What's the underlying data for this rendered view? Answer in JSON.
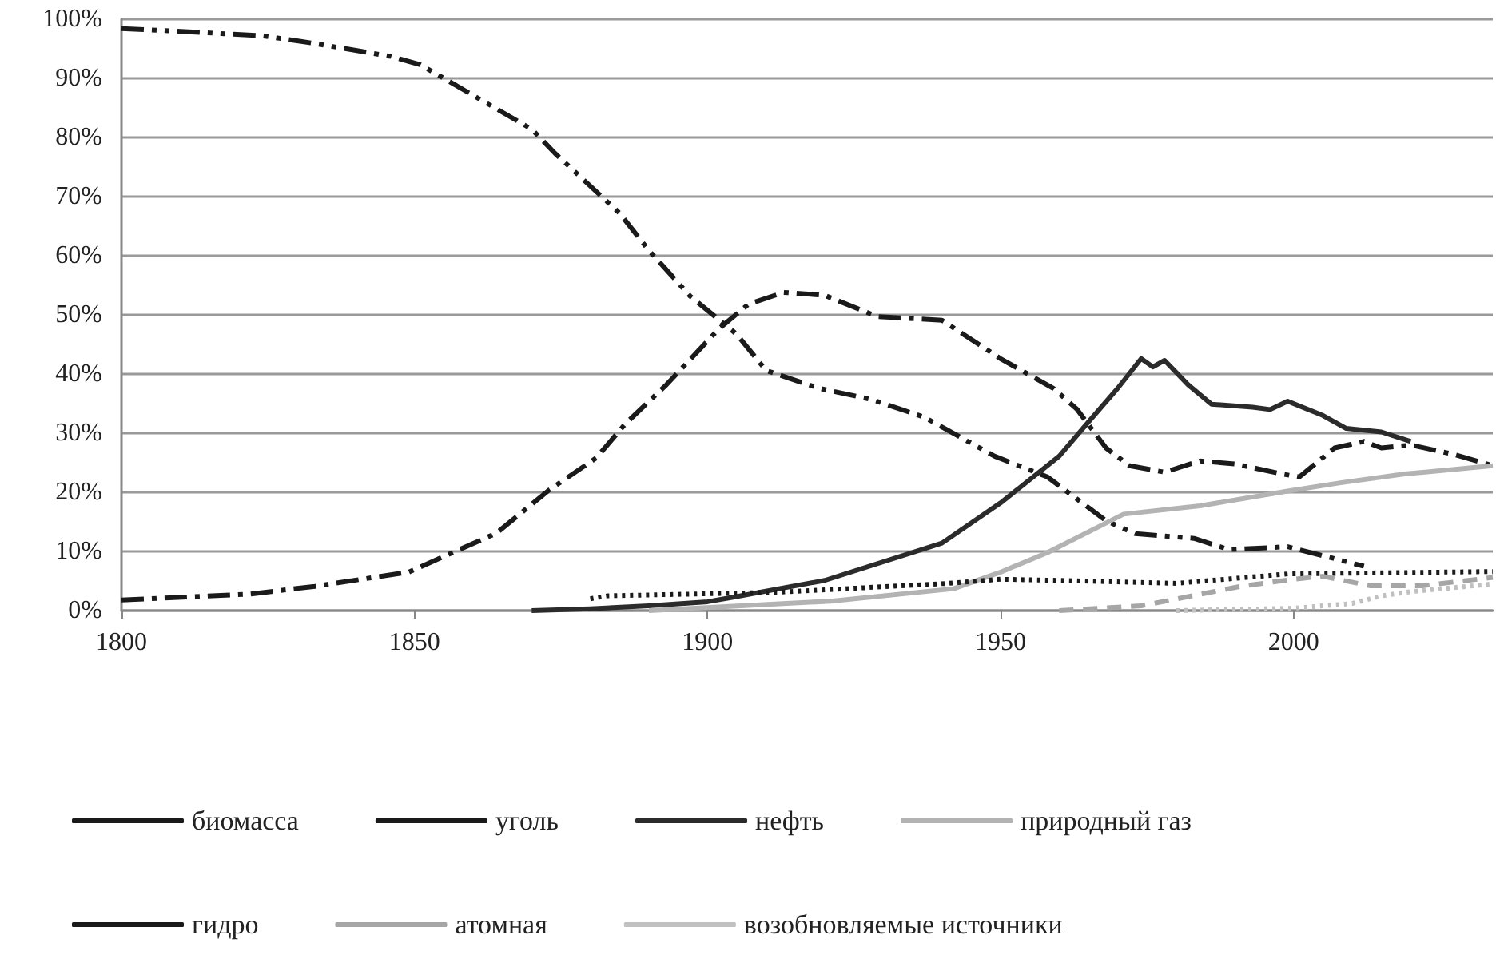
{
  "chart_data": {
    "type": "line",
    "xlim": [
      1800,
      2034
    ],
    "xticks": [
      1800,
      1850,
      1900,
      1950,
      2000
    ],
    "ylim": [
      0,
      100
    ],
    "yticks": [
      {
        "value": 0,
        "label": "0%"
      },
      {
        "value": 10,
        "label": "10%"
      },
      {
        "value": 20,
        "label": "20%"
      },
      {
        "value": 30,
        "label": "30%"
      },
      {
        "value": 40,
        "label": "40%"
      },
      {
        "value": 50,
        "label": "50%"
      },
      {
        "value": 60,
        "label": "60%"
      },
      {
        "value": 70,
        "label": "70%"
      },
      {
        "value": 80,
        "label": "80%"
      },
      {
        "value": 90,
        "label": "90%"
      },
      {
        "value": 100,
        "label": "100%"
      }
    ],
    "grid": "y",
    "legend": "bottom",
    "marker": "none",
    "series": [
      {
        "name": "биомасса",
        "color": "#1a1a1a",
        "line_style": "dashdotdot",
        "x": [
          1800,
          1809,
          1824,
          1833,
          1846,
          1851,
          1859,
          1870,
          1874,
          1885,
          1890,
          1897,
          1905,
          1910,
          1919,
          1928,
          1937,
          1949,
          1958,
          1968,
          1973,
          1983,
          1989,
          1999,
          2012
        ],
        "values": [
          98.4,
          98,
          97.2,
          95.9,
          93.7,
          92.3,
          87.7,
          81.4,
          77.3,
          67.2,
          60.9,
          53.2,
          46.7,
          40.6,
          37.6,
          35.7,
          32.7,
          26.1,
          22.6,
          15.2,
          13,
          12.2,
          10.3,
          10.8,
          7.5
        ]
      },
      {
        "name": "уголь",
        "color": "#1a1a1a",
        "line_style": "dashdot",
        "x": [
          1800,
          1822,
          1833,
          1849,
          1864,
          1873,
          1881,
          1886,
          1893,
          1902,
          1907,
          1913,
          1920,
          1929,
          1940,
          1950,
          1959,
          1963,
          1968,
          1972,
          1978,
          1984,
          1990,
          1998,
          2001,
          2007,
          2012,
          2015,
          2020,
          2027,
          2034
        ],
        "values": [
          1.8,
          2.8,
          4.1,
          6.5,
          13.1,
          20.4,
          25.8,
          31.6,
          38.2,
          47.7,
          51.8,
          53.8,
          53.3,
          49.7,
          49.1,
          42.6,
          37.6,
          34.1,
          27.5,
          24.5,
          23.4,
          25.3,
          24.8,
          23.1,
          22.6,
          27.5,
          28.6,
          27.5,
          28,
          26.5,
          24.5
        ]
      },
      {
        "name": "нефть",
        "color": "#2b2b2b",
        "line_style": "solid",
        "x": [
          1870,
          1880,
          1890,
          1900,
          1904,
          1920,
          1940,
          1950,
          1960,
          1965,
          1970,
          1974,
          1976,
          1978,
          1982,
          1986,
          1993,
          1996,
          1999,
          2005,
          2009,
          2015,
          2020
        ],
        "values": [
          0,
          0.3,
          0.8,
          1.5,
          2.2,
          5.1,
          11.4,
          18.2,
          26.1,
          31.9,
          37.6,
          42.6,
          41.2,
          42.3,
          38.2,
          34.9,
          34.4,
          34,
          35.4,
          33,
          30.8,
          30.2,
          28.6
        ]
      },
      {
        "name": "природный газ",
        "color": "#b3b3b3",
        "line_style": "solid",
        "x": [
          1890,
          1921,
          1942,
          1950,
          1958,
          1971,
          1984,
          1999,
          2008,
          2019,
          2034
        ],
        "values": [
          0,
          1.6,
          3.7,
          6.5,
          9.8,
          16.3,
          17.7,
          20.2,
          21.6,
          23.1,
          24.5
        ]
      },
      {
        "name": "гидро",
        "color": "#1a1a1a",
        "line_style": "dotted",
        "x": [
          1880,
          1883,
          1912,
          1941,
          1950,
          1960,
          1980,
          1999,
          2034
        ],
        "values": [
          2,
          2.5,
          3.1,
          4.6,
          5.3,
          5.1,
          4.6,
          6.2,
          6.6
        ]
      },
      {
        "name": "атомная",
        "color": "#a6a6a6",
        "line_style": "dashed",
        "x": [
          1960,
          1974,
          1991,
          2000,
          2005,
          2013,
          2022,
          2034
        ],
        "values": [
          0,
          0.8,
          4.1,
          5.3,
          5.8,
          4.2,
          4.2,
          5.6
        ]
      },
      {
        "name": "возобновляемые источники",
        "color": "#c0c0c0",
        "line_style": "dotted",
        "x": [
          1980,
          2000,
          2010,
          2015,
          2020,
          2034
        ],
        "values": [
          0,
          0.4,
          1.2,
          2.5,
          3.2,
          4.5
        ]
      }
    ]
  }
}
